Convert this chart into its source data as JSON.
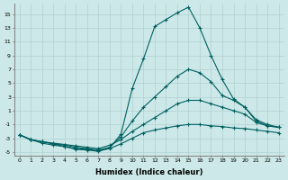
{
  "xlabel": "Humidex (Indice chaleur)",
  "x": [
    0,
    1,
    2,
    3,
    4,
    5,
    6,
    7,
    8,
    9,
    10,
    11,
    12,
    13,
    14,
    15,
    16,
    17,
    18,
    19,
    20,
    21,
    22,
    23
  ],
  "line1": [
    -2.5,
    -3.2,
    -3.5,
    -3.8,
    -4.2,
    -4.6,
    -4.7,
    -4.9,
    -4.4,
    -2.4,
    4.2,
    8.5,
    13.2,
    14.2,
    15.2,
    16.0,
    13.0,
    9.0,
    5.5,
    2.7,
    1.5,
    -0.5,
    -1.2,
    -1.4
  ],
  "line2": [
    -2.5,
    -3.2,
    -3.5,
    -3.8,
    -4.0,
    -4.3,
    -4.5,
    -4.7,
    -4.3,
    -2.8,
    -0.5,
    1.5,
    3.0,
    4.5,
    6.0,
    7.0,
    6.5,
    5.2,
    3.2,
    2.5,
    1.5,
    -0.3,
    -1.0,
    -1.4
  ],
  "line3": [
    -2.5,
    -3.2,
    -3.5,
    -3.7,
    -3.9,
    -4.1,
    -4.3,
    -4.5,
    -4.0,
    -3.2,
    -2.0,
    -1.0,
    0.0,
    1.0,
    2.0,
    2.5,
    2.5,
    2.0,
    1.5,
    1.0,
    0.5,
    -0.7,
    -1.2,
    -1.4
  ],
  "line4": [
    -2.5,
    -3.2,
    -3.7,
    -4.0,
    -4.2,
    -4.5,
    -4.6,
    -4.8,
    -4.5,
    -3.8,
    -3.0,
    -2.2,
    -1.8,
    -1.5,
    -1.2,
    -1.0,
    -1.0,
    -1.2,
    -1.3,
    -1.5,
    -1.6,
    -1.8,
    -2.0,
    -2.2
  ],
  "bg_color": "#cde8e8",
  "line_color": "#006060",
  "grid_color": "#b0d0d0",
  "ylim": [
    -5.5,
    16.5
  ],
  "yticks": [
    -5,
    -3,
    -1,
    1,
    3,
    5,
    7,
    9,
    11,
    13,
    15
  ],
  "marker": "+",
  "markersize": 3,
  "linewidth": 0.8,
  "tick_fontsize": 4.5,
  "xlabel_fontsize": 6
}
